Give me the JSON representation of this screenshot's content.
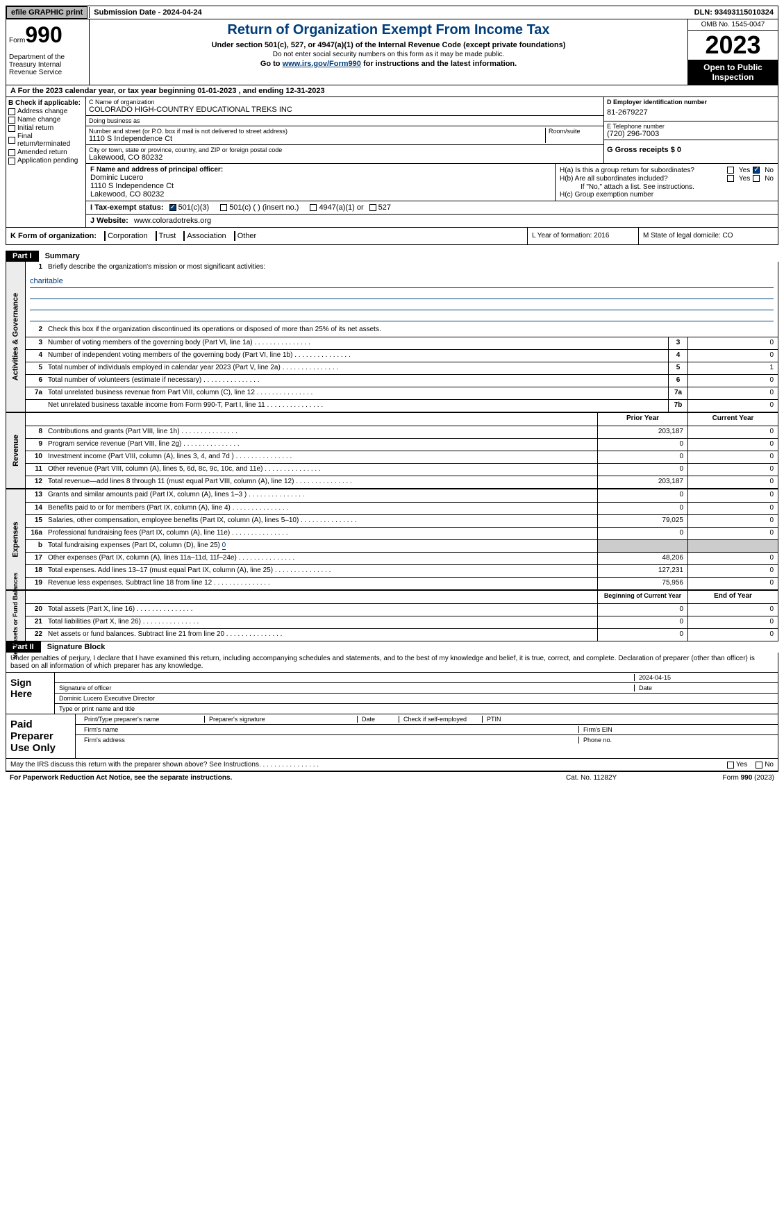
{
  "topbar": {
    "btn1": "efile GRAPHIC print",
    "btn2": "Submission Date - 2024-04-24",
    "dln": "DLN: 93493115010324"
  },
  "header": {
    "form_label": "Form",
    "form_num": "990",
    "dept": "Department of the Treasury Internal Revenue Service",
    "title": "Return of Organization Exempt From Income Tax",
    "subtitle": "Under section 501(c), 527, or 4947(a)(1) of the Internal Revenue Code (except private foundations)",
    "note1": "Do not enter social security numbers on this form as it may be made public.",
    "note2_pre": "Go to ",
    "note2_link": "www.irs.gov/Form990",
    "note2_post": " for instructions and the latest information.",
    "omb": "OMB No. 1545-0047",
    "year": "2023",
    "inspection": "Open to Public Inspection"
  },
  "row_a": "A  For the 2023 calendar year, or tax year beginning 01-01-2023   , and ending 12-31-2023",
  "col_b": {
    "header": "B Check if applicable:",
    "items": [
      "Address change",
      "Name change",
      "Initial return",
      "Final return/terminated",
      "Amended return",
      "Application pending"
    ]
  },
  "sec_c": {
    "name_label": "C Name of organization",
    "name": "COLORADO HIGH-COUNTRY EDUCATIONAL TREKS INC",
    "dba_label": "Doing business as",
    "dba": "",
    "street_label": "Number and street (or P.O. box if mail is not delivered to street address)",
    "street": "1110 S Independence Ct",
    "room_label": "Room/suite",
    "city_label": "City or town, state or province, country, and ZIP or foreign postal code",
    "city": "Lakewood, CO  80232"
  },
  "sec_d": {
    "ein_label": "D Employer identification number",
    "ein": "81-2679227",
    "phone_label": "E Telephone number",
    "phone": "(720) 296-7003",
    "receipts_label": "G Gross receipts $ 0"
  },
  "sec_f": {
    "label": "F  Name and address of principal officer:",
    "name": "Dominic Lucero",
    "street": "1110 S Independence Ct",
    "city": "Lakewood, CO  80232"
  },
  "sec_h": {
    "ha": "H(a)  Is this a group return for subordinates?",
    "hb": "H(b)  Are all subordinates included?",
    "hb_note": "If \"No,\" attach a list. See instructions.",
    "hc": "H(c)  Group exemption number",
    "yes": "Yes",
    "no": "No"
  },
  "row_i": {
    "label": "I   Tax-exempt status:",
    "c3": "501(c)(3)",
    "c": "501(c) (  ) (insert no.)",
    "a1": "4947(a)(1) or",
    "s527": "527"
  },
  "row_j": {
    "label": "J   Website:",
    "value": "www.coloradotreks.org"
  },
  "row_k": {
    "label": "K Form of organization:",
    "corp": "Corporation",
    "trust": "Trust",
    "assoc": "Association",
    "other": "Other",
    "year_label": "L Year of formation: 2016",
    "state_label": "M State of legal domicile: CO"
  },
  "part1": {
    "header": "Part I",
    "title": "Summary"
  },
  "summary": {
    "gov_sidebar": "Activities & Governance",
    "rev_sidebar": "Revenue",
    "exp_sidebar": "Expenses",
    "net_sidebar": "Net Assets or Fund Balances",
    "line1": "Briefly describe the organization's mission or most significant activities:",
    "mission": "charitable",
    "line2": "Check this box      if the organization discontinued its operations or disposed of more than 25% of its net assets.",
    "lines_gov": [
      {
        "n": "3",
        "d": "Number of voting members of the governing body (Part VI, line 1a)",
        "box": "3",
        "v": "0"
      },
      {
        "n": "4",
        "d": "Number of independent voting members of the governing body (Part VI, line 1b)",
        "box": "4",
        "v": "0"
      },
      {
        "n": "5",
        "d": "Total number of individuals employed in calendar year 2023 (Part V, line 2a)",
        "box": "5",
        "v": "1"
      },
      {
        "n": "6",
        "d": "Total number of volunteers (estimate if necessary)",
        "box": "6",
        "v": "0"
      },
      {
        "n": "7a",
        "d": "Total unrelated business revenue from Part VIII, column (C), line 12",
        "box": "7a",
        "v": "0"
      },
      {
        "n": "",
        "d": "Net unrelated business taxable income from Form 990-T, Part I, line 11",
        "box": "7b",
        "v": "0"
      }
    ],
    "prior_header": "Prior Year",
    "current_header": "Current Year",
    "lines_rev": [
      {
        "n": "8",
        "d": "Contributions and grants (Part VIII, line 1h)",
        "p": "203,187",
        "c": "0"
      },
      {
        "n": "9",
        "d": "Program service revenue (Part VIII, line 2g)",
        "p": "0",
        "c": "0"
      },
      {
        "n": "10",
        "d": "Investment income (Part VIII, column (A), lines 3, 4, and 7d )",
        "p": "0",
        "c": "0"
      },
      {
        "n": "11",
        "d": "Other revenue (Part VIII, column (A), lines 5, 6d, 8c, 9c, 10c, and 11e)",
        "p": "0",
        "c": "0"
      },
      {
        "n": "12",
        "d": "Total revenue—add lines 8 through 11 (must equal Part VIII, column (A), line 12)",
        "p": "203,187",
        "c": "0"
      }
    ],
    "lines_exp": [
      {
        "n": "13",
        "d": "Grants and similar amounts paid (Part IX, column (A), lines 1–3 )",
        "p": "0",
        "c": "0"
      },
      {
        "n": "14",
        "d": "Benefits paid to or for members (Part IX, column (A), line 4)",
        "p": "0",
        "c": "0"
      },
      {
        "n": "15",
        "d": "Salaries, other compensation, employee benefits (Part IX, column (A), lines 5–10)",
        "p": "79,025",
        "c": "0"
      },
      {
        "n": "16a",
        "d": "Professional fundraising fees (Part IX, column (A), line 11e)",
        "p": "0",
        "c": "0"
      }
    ],
    "line16b_pre": "Total fundraising expenses (Part IX, column (D), line 25) ",
    "line16b_val": "0",
    "lines_exp2": [
      {
        "n": "17",
        "d": "Other expenses (Part IX, column (A), lines 11a–11d, 11f–24e)",
        "p": "48,206",
        "c": "0"
      },
      {
        "n": "18",
        "d": "Total expenses. Add lines 13–17 (must equal Part IX, column (A), line 25)",
        "p": "127,231",
        "c": "0"
      },
      {
        "n": "19",
        "d": "Revenue less expenses. Subtract line 18 from line 12",
        "p": "75,956",
        "c": "0"
      }
    ],
    "boy_header": "Beginning of Current Year",
    "eoy_header": "End of Year",
    "lines_net": [
      {
        "n": "20",
        "d": "Total assets (Part X, line 16)",
        "p": "0",
        "c": "0"
      },
      {
        "n": "21",
        "d": "Total liabilities (Part X, line 26)",
        "p": "0",
        "c": "0"
      },
      {
        "n": "22",
        "d": "Net assets or fund balances. Subtract line 21 from line 20",
        "p": "0",
        "c": "0"
      }
    ]
  },
  "part2": {
    "header": "Part II",
    "title": "Signature Block"
  },
  "sig": {
    "declaration": "Under penalties of perjury, I declare that I have examined this return, including accompanying schedules and statements, and to the best of my knowledge and belief, it is true, correct, and complete. Declaration of preparer (other than officer) is based on all information of which preparer has any knowledge.",
    "sign_here": "Sign Here",
    "date": "2024-04-15",
    "sig_label": "Signature of officer",
    "officer": "Dominic Lucero  Executive Director",
    "type_label": "Type or print name and title",
    "date_label": "Date",
    "paid": "Paid Preparer Use Only",
    "prep_name": "Print/Type preparer's name",
    "prep_sig": "Preparer's signature",
    "prep_date": "Date",
    "prep_check": "Check        if self-employed",
    "ptin": "PTIN",
    "firm_name": "Firm's name",
    "firm_ein": "Firm's EIN",
    "firm_addr": "Firm's address",
    "firm_phone": "Phone no."
  },
  "may_line": "May the IRS discuss this return with the preparer shown above? See Instructions.",
  "footer": {
    "left": "For Paperwork Reduction Act Notice, see the separate instructions.",
    "mid": "Cat. No. 11282Y",
    "right_pre": "Form ",
    "right_bold": "990",
    "right_post": " (2023)"
  }
}
